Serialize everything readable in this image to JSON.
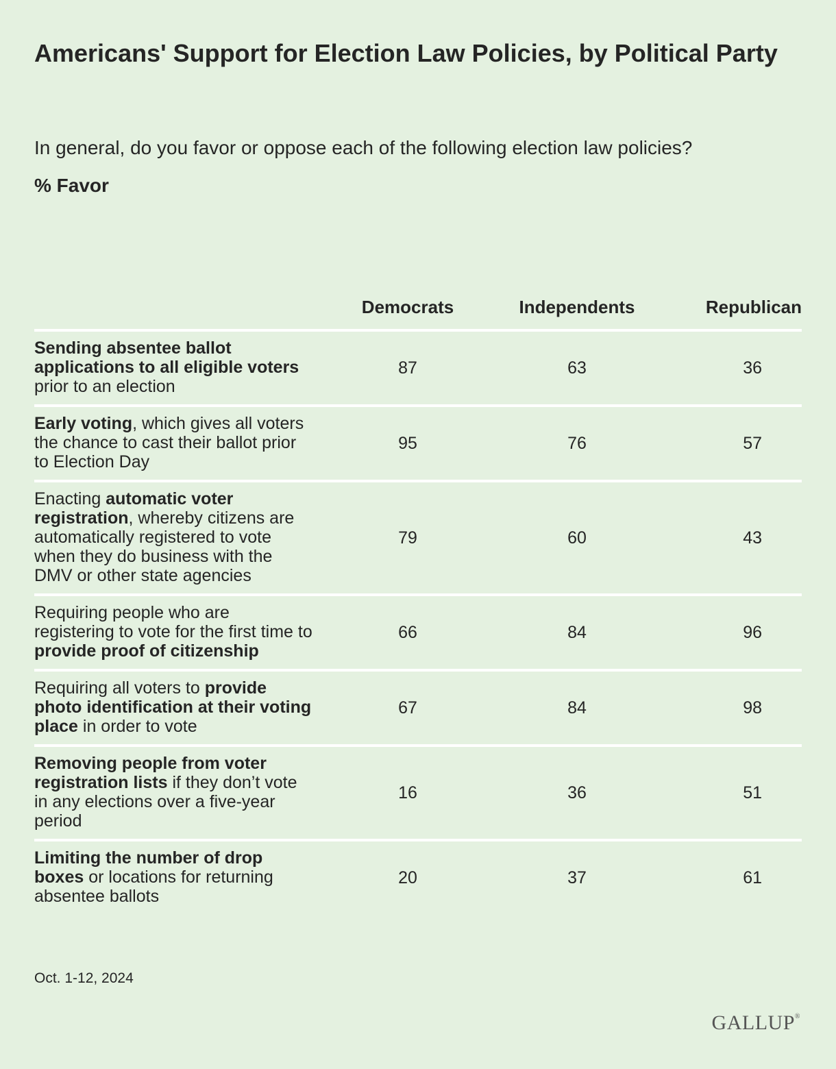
{
  "title": "Americans' Support for Election Law Policies, by Political Party",
  "subtitle": "In general, do you favor or oppose each of the following election law policies?",
  "measure_label": "% Favor",
  "footer": {
    "date": "Oct. 1-12, 2024"
  },
  "logo": {
    "text": "GALLUP",
    "mark": "®"
  },
  "colors": {
    "background": "#e4f1e0",
    "row_divider": "#ffffff",
    "text": "#252525"
  },
  "chart_data": {
    "type": "table",
    "title": "Americans' Support for Election Law Policies, by Political Party",
    "subtitle": "In general, do you favor or oppose each of the following election law policies?",
    "unit": "% Favor",
    "columns": [
      "Democrats",
      "Independents",
      "Republican"
    ],
    "rows": [
      {
        "segments": [
          {
            "text": "Sending absentee ballot applications to all eligible voters",
            "bold": true
          },
          {
            "text": " prior to an election",
            "bold": false
          }
        ],
        "values": [
          87,
          63,
          36
        ]
      },
      {
        "segments": [
          {
            "text": "Early voting",
            "bold": true
          },
          {
            "text": ", which gives all voters the chance to cast their ballot prior to Election Day",
            "bold": false
          }
        ],
        "values": [
          95,
          76,
          57
        ]
      },
      {
        "segments": [
          {
            "text": "Enacting ",
            "bold": false
          },
          {
            "text": "automatic voter registration",
            "bold": true
          },
          {
            "text": ", whereby citizens are automatically registered to vote when they do business with the DMV or other state agencies",
            "bold": false
          }
        ],
        "values": [
          79,
          60,
          43
        ]
      },
      {
        "segments": [
          {
            "text": "Requiring people who are registering to vote for the first time to ",
            "bold": false
          },
          {
            "text": "provide proof of citizenship",
            "bold": true
          }
        ],
        "values": [
          66,
          84,
          96
        ]
      },
      {
        "segments": [
          {
            "text": "Requiring all voters to ",
            "bold": false
          },
          {
            "text": "provide photo identification at their voting place",
            "bold": true
          },
          {
            "text": " in order to vote",
            "bold": false
          }
        ],
        "values": [
          67,
          84,
          98
        ]
      },
      {
        "segments": [
          {
            "text": "Removing people from voter registration lists",
            "bold": true
          },
          {
            "text": " if they don’t vote in any elections over a five-year period",
            "bold": false
          }
        ],
        "values": [
          16,
          36,
          51
        ]
      },
      {
        "segments": [
          {
            "text": "Limiting the number of drop boxes",
            "bold": true
          },
          {
            "text": " or locations for returning absentee ballots",
            "bold": false
          }
        ],
        "values": [
          20,
          37,
          61
        ]
      }
    ]
  }
}
